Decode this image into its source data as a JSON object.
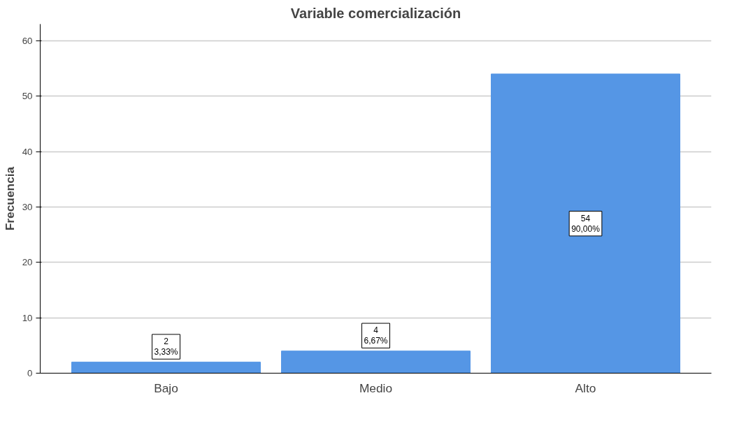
{
  "chart_data": {
    "type": "bar",
    "title": "Variable comercialización",
    "ylabel": "Frecuencia",
    "categories": [
      "Bajo",
      "Medio",
      "Alto"
    ],
    "values": [
      2,
      4,
      54
    ],
    "color": "#5596e5",
    "value_labels": [
      "2\n3,33%",
      "4\n6,67%",
      "54\n90,00%"
    ],
    "ylim": [
      0,
      63
    ],
    "yticks": [
      0,
      10,
      20,
      30,
      40,
      50,
      60
    ],
    "grid": "y"
  }
}
